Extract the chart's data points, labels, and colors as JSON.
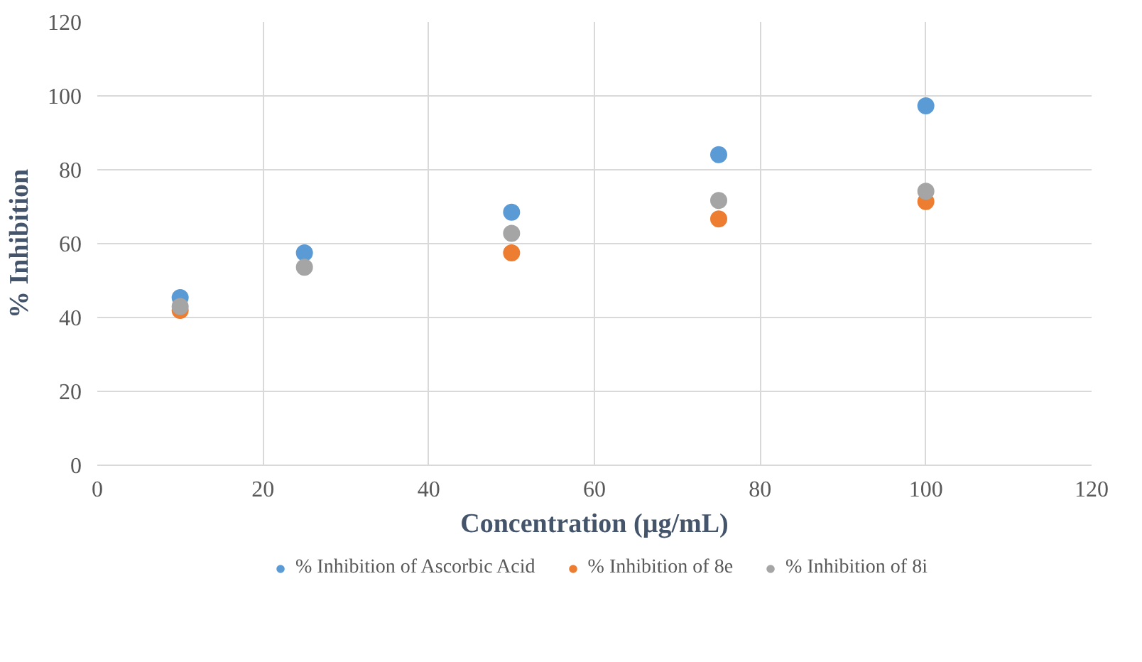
{
  "chart_data": {
    "type": "scatter",
    "xlabel": "Concentration (µg/mL)",
    "ylabel": "% Inhibition",
    "x": [
      10,
      25,
      50,
      75,
      100
    ],
    "series": [
      {
        "name": "% Inhibition of Ascorbic Acid",
        "color": "#5b9bd5",
        "values": [
          45.4,
          57.5,
          68.5,
          84.1,
          97.3
        ]
      },
      {
        "name": "% Inhibition of 8e",
        "color": "#ed7d31",
        "values": [
          41.9,
          null,
          57.5,
          66.7,
          71.4
        ]
      },
      {
        "name": "% Inhibition of 8i",
        "color": "#a5a5a5",
        "values": [
          43.0,
          53.6,
          62.8,
          71.7,
          74.2
        ]
      }
    ],
    "xlim": [
      0,
      120
    ],
    "xticks": [
      0,
      20,
      40,
      60,
      80,
      100,
      120
    ],
    "ylim": [
      0,
      120
    ],
    "yticks": [
      0,
      20,
      40,
      60,
      80,
      100,
      120
    ],
    "grid": true,
    "legend": "bottom",
    "marker": "circle"
  }
}
